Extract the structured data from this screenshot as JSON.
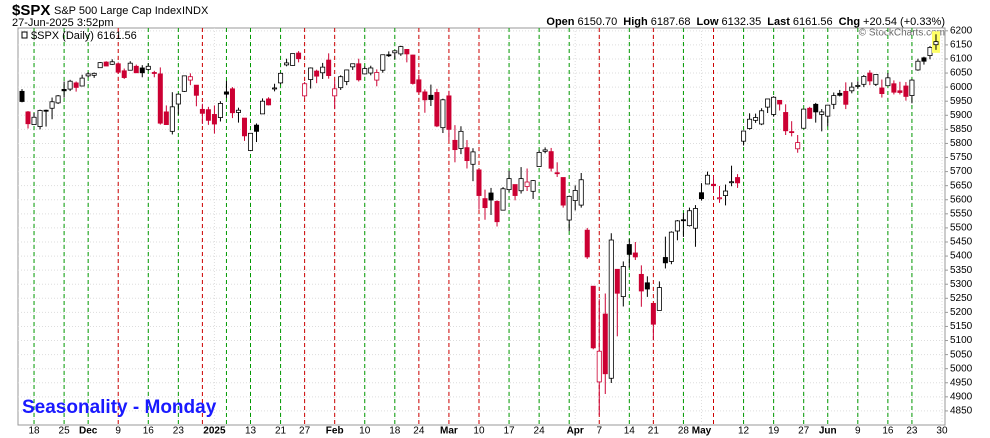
{
  "chart_data": {
    "type": "candlestick",
    "title": "$SPX",
    "subtitle": "S&P 500 Large Cap Index",
    "exchange": "INDX",
    "timestamp": "27-Jun-2025 3:52pm",
    "quote": [
      {
        "label": "Open",
        "value": "6150.70"
      },
      {
        "label": "High",
        "value": "6187.68"
      },
      {
        "label": "Low",
        "value": "6132.35"
      },
      {
        "label": "Last",
        "value": "6161.56"
      },
      {
        "label": "Chg",
        "value": "+20.54 (+0.33%)"
      }
    ],
    "watermark": "© StockCharts.com",
    "legend": "$SPX (Daily) 6161.56",
    "annotation": "Seasonality - Monday",
    "categories": [
      null,
      null,
      "18",
      null,
      null,
      null,
      null,
      "25",
      null,
      null,
      null,
      "Dec",
      null,
      null,
      null,
      null,
      "9",
      null,
      null,
      null,
      null,
      "16",
      null,
      null,
      null,
      null,
      "23",
      null,
      null,
      null,
      null,
      null,
      "2025",
      null,
      null,
      null,
      null,
      null,
      "13",
      null,
      null,
      null,
      null,
      "21",
      null,
      null,
      null,
      "27",
      null,
      null,
      null,
      null,
      "Feb",
      null,
      null,
      null,
      null,
      "10",
      null,
      null,
      null,
      null,
      "18",
      null,
      null,
      null,
      "24",
      null,
      null,
      null,
      null,
      "Mar",
      null,
      null,
      null,
      null,
      "10",
      null,
      null,
      null,
      null,
      "17",
      null,
      null,
      null,
      null,
      "24",
      null,
      null,
      null,
      null,
      null,
      "Apr",
      null,
      null,
      null,
      "7",
      null,
      null,
      null,
      null,
      "14",
      null,
      null,
      null,
      "21",
      null,
      null,
      null,
      null,
      "28",
      null,
      null,
      "May",
      null,
      null,
      null,
      null,
      null,
      null,
      "12",
      null,
      null,
      null,
      null,
      "19",
      null,
      null,
      null,
      null,
      "27",
      null,
      null,
      null,
      "Jun",
      null,
      null,
      null,
      null,
      "9",
      null,
      null,
      null,
      null,
      "16",
      null,
      null,
      null,
      "23",
      null,
      null,
      null,
      null,
      "30"
    ],
    "open": [
      5985,
      5912,
      5867,
      5860,
      5918,
      5925,
      5944,
      5992,
      5993,
      6015,
      6004,
      6040,
      6042,
      6069,
      6089,
      6081,
      6083,
      6058,
      6060,
      6074,
      6068,
      6063,
      6052,
      6047,
      5912,
      5843,
      5940,
      5985,
      6025,
      6007,
      5921,
      5920,
      5903,
      5892,
      5983,
      5994,
      5910,
      5890,
      5775,
      5865,
      5905,
      5958,
      5995,
      6015,
      6079,
      6077,
      6121,
      5969,
      6027,
      6057,
      6051,
      6096,
      5969,
      5998,
      6020,
      6072,
      6083,
      6047,
      6050,
      6025,
      6060,
      6115,
      6122,
      6118,
      6134,
      6114,
      6026,
      5983,
      5971,
      5981,
      5856,
      5969,
      5811,
      5782,
      5785,
      5726,
      5706,
      5604,
      5624,
      5594,
      5563,
      5636,
      5654,
      5632,
      5647,
      5630,
      5718,
      5772,
      5771,
      5696,
      5679,
      5528,
      5597,
      5581,
      5492,
      5293,
      4953,
      5194,
      4966,
      5353,
      5256,
      5441,
      5411,
      5335,
      5305,
      5232,
      5207,
      5395,
      5381,
      5489,
      5529,
      5508,
      5499,
      5625,
      5656,
      5655,
      5606,
      5615,
      5663,
      5679,
      5808,
      5853,
      5882,
      5869,
      5929,
      5903,
      5953,
      5910,
      5842,
      5781,
      5854,
      5925,
      5939,
      5903,
      5897,
      5939,
      5978,
      5985,
      5987,
      6005,
      6010,
      6050,
      6010,
      5997,
      6005,
      6012,
      5987,
      6004,
      5970,
      6061,
      6104,
      6112,
      6150.7,
      null
    ],
    "high": [
      5993,
      5915,
      5908,
      5920,
      5920,
      5963,
      5972,
      6020,
      6026,
      6020,
      6044,
      6053,
      6052,
      6089,
      6092,
      6099,
      6088,
      6066,
      6092,
      6080,
      6078,
      6085,
      6058,
      6070,
      5935,
      5982,
      5978,
      6041,
      6049,
      6007,
      5941,
      5930,
      5935,
      5950,
      6022,
      6000,
      5927,
      5890,
      5836,
      5871,
      5960,
      5964,
      6012,
      6052,
      6101,
      6119,
      6128,
      6018,
      6070,
      6062,
      6086,
      6120,
      6023,
      6042,
      6062,
      6084,
      6101,
      6073,
      6076,
      6063,
      6116,
      6127,
      6129,
      6147,
      6135,
      6115,
      6044,
      5992,
      6009,
      5994,
      5959,
      5987,
      5865,
      5861,
      5812,
      5783,
      5706,
      5636,
      5642,
      5598,
      5645,
      5703,
      5654,
      5716,
      5711,
      5670,
      5775,
      5786,
      5784,
      5733,
      5679,
      5615,
      5651,
      5695,
      5500,
      5293,
      5247,
      5267,
      5481,
      5353,
      5381,
      5460,
      5450,
      5367,
      5328,
      5233,
      5310,
      5469,
      5488,
      5528,
      5553,
      5572,
      5581,
      5659,
      5700,
      5684,
      5649,
      5654,
      5721,
      5691,
      5846,
      5907,
      5906,
      5925,
      5958,
      5968,
      5954,
      5939,
      5879,
      5830,
      5922,
      5930,
      5944,
      5922,
      5937,
      5981,
      5990,
      6017,
      6017,
      6021,
      6043,
      6060,
      6045,
      6027,
      6050,
      6024,
      6019,
      6018,
      6028,
      6101,
      6108,
      6146,
      6187.68,
      null
    ],
    "low": [
      5946,
      5853,
      5866,
      5850,
      5860,
      5886,
      5940,
      5963,
      5986,
      5984,
      6003,
      6035,
      6033,
      6068,
      6075,
      6079,
      6048,
      6029,
      6060,
      6051,
      6035,
      6059,
      6035,
      5867,
      5866,
      5832,
      5902,
      5983,
      6007,
      5932,
      5869,
      5866,
      5835,
      5878,
      5961,
      5890,
      5874,
      5809,
      5773,
      5805,
      5905,
      5935,
      5985,
      6010,
      6074,
      6076,
      6088,
      5962,
      5995,
      6014,
      6029,
      6030,
      5923,
      5990,
      6007,
      6061,
      6020,
      6045,
      6042,
      6003,
      6051,
      6107,
      6099,
      6111,
      6088,
      6009,
      5977,
      5909,
      5933,
      5858,
      5837,
      5810,
      5733,
      5762,
      5711,
      5666,
      5565,
      5529,
      5546,
      5505,
      5563,
      5628,
      5598,
      5622,
      5631,
      5603,
      5718,
      5765,
      5700,
      5681,
      5572,
      5489,
      5562,
      5572,
      5390,
      5069,
      4835,
      4910,
      4949,
      5115,
      5221,
      5359,
      5386,
      5220,
      5255,
      5101,
      5207,
      5356,
      5371,
      5456,
      5468,
      5505,
      5433,
      5597,
      5655,
      5628,
      5589,
      5580,
      5648,
      5642,
      5793,
      5849,
      5873,
      5865,
      5908,
      5895,
      5917,
      5830,
      5825,
      5767,
      5854,
      5887,
      5874,
      5843,
      5861,
      5922,
      5967,
      5922,
      5978,
      5994,
      6000,
      6007,
      6004,
      5963,
      6005,
      5974,
      5974,
      5952,
      5943,
      6058,
      6080,
      6099,
      6132.35,
      null
    ],
    "close": [
      5949,
      5870,
      5893,
      5917,
      5917,
      5948,
      5969,
      5987,
      6021,
      5999,
      6032,
      6047,
      6049,
      6087,
      6075,
      6090,
      6053,
      6034,
      6085,
      6051,
      6051,
      6074,
      6050,
      5872,
      5867,
      5930,
      5975,
      6040,
      6037,
      5971,
      5907,
      5882,
      5869,
      5942,
      5975,
      5909,
      5918,
      5827,
      5836,
      5843,
      5950,
      5937,
      5997,
      6049,
      6086,
      6119,
      6101,
      6012,
      6068,
      6039,
      6071,
      6041,
      5994,
      6037,
      6061,
      6083,
      6026,
      6066,
      6068,
      6052,
      6115,
      6115,
      6129,
      6144,
      6118,
      6013,
      5983,
      5955,
      5956,
      5862,
      5955,
      5850,
      5778,
      5843,
      5739,
      5770,
      5615,
      5572,
      5599,
      5522,
      5639,
      5675,
      5615,
      5675,
      5663,
      5668,
      5768,
      5777,
      5712,
      5693,
      5581,
      5612,
      5633,
      5671,
      5397,
      5074,
      5062,
      4982,
      5457,
      5268,
      5363,
      5406,
      5397,
      5276,
      5283,
      5158,
      5288,
      5376,
      5485,
      5525,
      5529,
      5561,
      5569,
      5604,
      5687,
      5650,
      5607,
      5631,
      5664,
      5660,
      5844,
      5886,
      5892,
      5916,
      5958,
      5964,
      5940,
      5845,
      5842,
      5803,
      5922,
      5889,
      5912,
      5912,
      5936,
      5970,
      5971,
      5939,
      6000,
      6006,
      6038,
      6022,
      6045,
      5977,
      6033,
      5982,
      5981,
      5967,
      6025,
      6092,
      6092,
      6141,
      6161.56,
      null
    ],
    "marker_indices": [
      2,
      7,
      11,
      16,
      21,
      26,
      30,
      34,
      38,
      43,
      47,
      52,
      57,
      62,
      66,
      71,
      76,
      81,
      86,
      91,
      96,
      101,
      105,
      110,
      115,
      120,
      125,
      130,
      134,
      139,
      144,
      148
    ],
    "up_color": "#000000",
    "down_color": "#cc0033",
    "up_marker_color": "#009900",
    "down_marker_color": "#cc0000",
    "annotation_color": "#1a1aff",
    "highlight_color": "#ffff66",
    "ylim": [
      4800,
      6210
    ],
    "yticks": [
      4850,
      4900,
      4950,
      5000,
      5050,
      5100,
      5150,
      5200,
      5250,
      5300,
      5350,
      5400,
      5450,
      5500,
      5550,
      5600,
      5650,
      5700,
      5750,
      5800,
      5850,
      5900,
      5950,
      6000,
      6050,
      6100,
      6150,
      6200
    ],
    "grid": true
  }
}
